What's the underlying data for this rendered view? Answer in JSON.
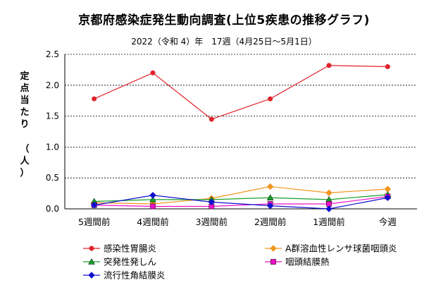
{
  "chart_data": {
    "type": "line",
    "title": "京都府感染症発生動向調査(上位5疾患の推移グラフ)",
    "subtitle": "2022（令和 4）年　17週（4月25日〜5月1日）",
    "ylabel": "定点当たり（人）",
    "categories": [
      "5週間前",
      "4週間前",
      "3週間前",
      "2週間前",
      "1週間前",
      "今週"
    ],
    "ylim": [
      0,
      2.5
    ],
    "yticks": [
      "0.0",
      "0.5",
      "1.0",
      "1.5",
      "2.0",
      "2.5"
    ],
    "grid": "horizontal dashed",
    "legend_position": "bottom",
    "series": [
      {
        "name": "感染性胃腸炎",
        "color": "#e0222a",
        "marker": "circle",
        "values": [
          1.78,
          2.2,
          1.45,
          1.78,
          2.32,
          2.3
        ]
      },
      {
        "name": "A群溶血性レンサ球菌咽頭炎",
        "color": "#f0961e",
        "marker": "diamond",
        "values": [
          0.1,
          0.08,
          0.17,
          0.36,
          0.26,
          0.32
        ]
      },
      {
        "name": "突発性発しん",
        "color": "#18a02c",
        "marker": "triangle",
        "values": [
          0.12,
          0.15,
          0.15,
          0.18,
          0.15,
          0.23
        ]
      },
      {
        "name": "咽頭結膜熱",
        "color": "#ee10c8",
        "marker": "square",
        "values": [
          0.06,
          0.04,
          0.04,
          0.08,
          0.08,
          0.2
        ]
      },
      {
        "name": "流行性角結膜炎",
        "color": "#1010d0",
        "marker": "diamond",
        "values": [
          0.06,
          0.22,
          0.11,
          0.05,
          0.0,
          0.18
        ]
      }
    ]
  }
}
